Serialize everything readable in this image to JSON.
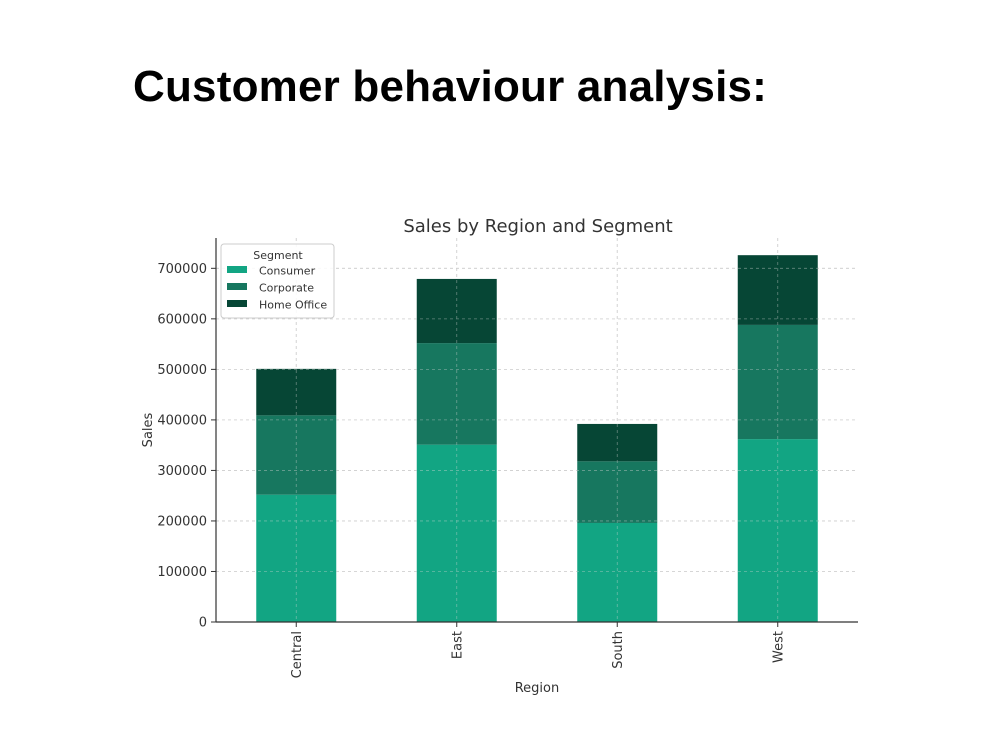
{
  "slide": {
    "title": "Customer behaviour analysis:"
  },
  "chart_data": {
    "type": "bar",
    "stacked": true,
    "title": "Sales by Region and Segment",
    "xlabel": "Region",
    "ylabel": "Sales",
    "categories": [
      "Central",
      "East",
      "South",
      "West"
    ],
    "series": [
      {
        "name": "Consumer",
        "color": "#12a583",
        "values": [
          252000,
          351000,
          196000,
          362000
        ]
      },
      {
        "name": "Corporate",
        "color": "#17775f",
        "values": [
          157000,
          201000,
          122000,
          226000
        ]
      },
      {
        "name": "Home Office",
        "color": "#064635",
        "values": [
          92000,
          127000,
          74000,
          138000
        ]
      }
    ],
    "ylim": [
      0,
      760000
    ],
    "yticks": [
      0,
      100000,
      200000,
      300000,
      400000,
      500000,
      600000,
      700000
    ],
    "ytick_labels": [
      "0",
      "100000",
      "200000",
      "300000",
      "400000",
      "500000",
      "600000",
      "700000"
    ],
    "grid": true,
    "legend": {
      "title": "Segment",
      "position": "upper-left"
    }
  }
}
